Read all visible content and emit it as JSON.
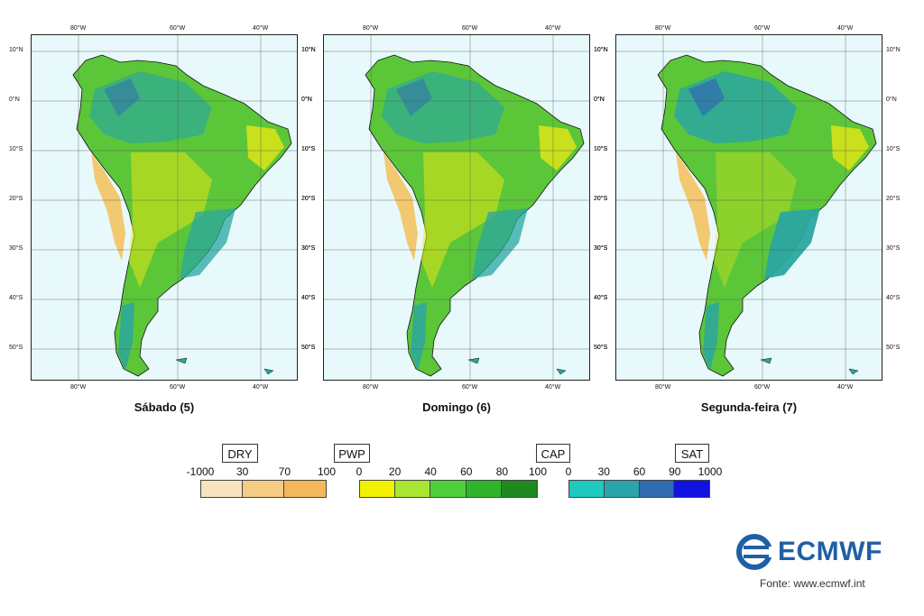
{
  "panels": [
    {
      "title": "Sábado (5)"
    },
    {
      "title": "Domingo (6)"
    },
    {
      "title": "Segunda-feira (7)"
    }
  ],
  "axes": {
    "lon_ticks": [
      "80°W",
      "60°W",
      "40°W"
    ],
    "lat_ticks": [
      "10°N",
      "0°N",
      "10°S",
      "20°S",
      "30°S",
      "40°S",
      "50°S"
    ]
  },
  "legend": {
    "groups": [
      {
        "label": "DRY",
        "ticks": [
          "-1000",
          "30",
          "70",
          "100"
        ],
        "colors": [
          "#f8e2bf",
          "#f6cc85",
          "#f4b85a"
        ]
      },
      {
        "label": "PWP",
        "ticks": [
          "0",
          "20",
          "40",
          "60",
          "80",
          "100"
        ],
        "colors": [
          "#f2f200",
          "#a8e632",
          "#4fd03b",
          "#2fb52a",
          "#1e8a1e"
        ]
      },
      {
        "label": "CAP",
        "ticks": [],
        "colors": []
      },
      {
        "label": "SAT",
        "ticks": [
          "0",
          "30",
          "60",
          "90",
          "1000"
        ],
        "colors": [
          "#1fc9c0",
          "#2aa3ab",
          "#2f6db0",
          "#1212e0"
        ]
      }
    ]
  },
  "colors": {
    "ocean": "#e7f9fa",
    "dry": "#f2c870",
    "yellow": "#e6e615",
    "green": "#5cc639",
    "teal": "#2aa6a0",
    "blue": "#2f6db0",
    "brand": "#1f5fa3"
  },
  "branding": {
    "logo": "ECMWF",
    "source": "Fonte: www.ecmwf.int"
  }
}
